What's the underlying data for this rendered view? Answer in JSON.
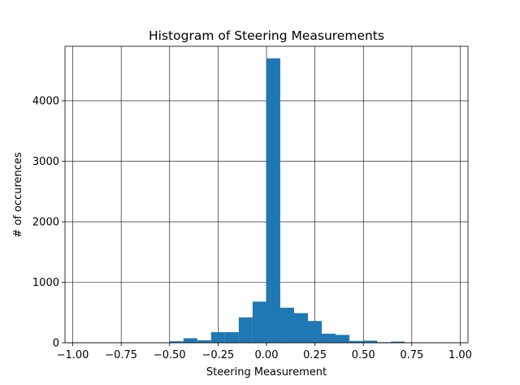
{
  "chart_data": {
    "type": "bar",
    "title": "Histogram of Steering Measurements",
    "xlabel": "Steering Measurement",
    "ylabel": "# of occurences",
    "xlim": [
      -1.04,
      1.04
    ],
    "ylim": [
      0,
      4900
    ],
    "xticks": [
      -1.0,
      -0.75,
      -0.5,
      -0.25,
      0.0,
      0.25,
      0.5,
      0.75,
      1.0
    ],
    "xtick_labels": [
      "−1.00",
      "−0.75",
      "−0.50",
      "−0.25",
      "0.00",
      "0.25",
      "0.50",
      "0.75",
      "1.00"
    ],
    "yticks": [
      0,
      1000,
      2000,
      3000,
      4000
    ],
    "ytick_labels": [
      "0",
      "1000",
      "2000",
      "3000",
      "4000"
    ],
    "grid": true,
    "bar_color": "#1f77b4",
    "bin_width": 0.0714,
    "bin_start": -1.0,
    "values": [
      0,
      0,
      0,
      0,
      0,
      0,
      0,
      25,
      75,
      40,
      175,
      175,
      420,
      680,
      4700,
      580,
      490,
      360,
      150,
      130,
      30,
      35,
      10,
      20,
      0,
      0,
      0,
      0
    ]
  }
}
